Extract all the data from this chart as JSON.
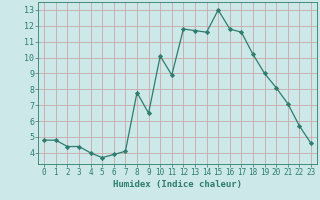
{
  "x": [
    0,
    1,
    2,
    3,
    4,
    5,
    6,
    7,
    8,
    9,
    10,
    11,
    12,
    13,
    14,
    15,
    16,
    17,
    18,
    19,
    20,
    21,
    22,
    23
  ],
  "y": [
    4.8,
    4.8,
    4.4,
    4.4,
    4.0,
    3.7,
    3.9,
    4.1,
    7.8,
    6.5,
    10.1,
    8.9,
    11.8,
    11.7,
    11.6,
    13.0,
    11.8,
    11.6,
    10.2,
    9.0,
    8.1,
    7.1,
    5.7,
    4.6
  ],
  "line_color": "#2e7d6e",
  "marker": "D",
  "marker_size": 2.2,
  "bg_color": "#cce8e8",
  "grid_color": "#c8a8a8",
  "xlabel": "Humidex (Indice chaleur)",
  "xlim": [
    -0.5,
    23.5
  ],
  "ylim": [
    3.3,
    13.5
  ],
  "yticks": [
    4,
    5,
    6,
    7,
    8,
    9,
    10,
    11,
    12,
    13
  ],
  "tick_color": "#2e7d6e",
  "xlabel_fontsize": 6.5,
  "ytick_fontsize": 6,
  "xtick_fontsize": 5.5
}
